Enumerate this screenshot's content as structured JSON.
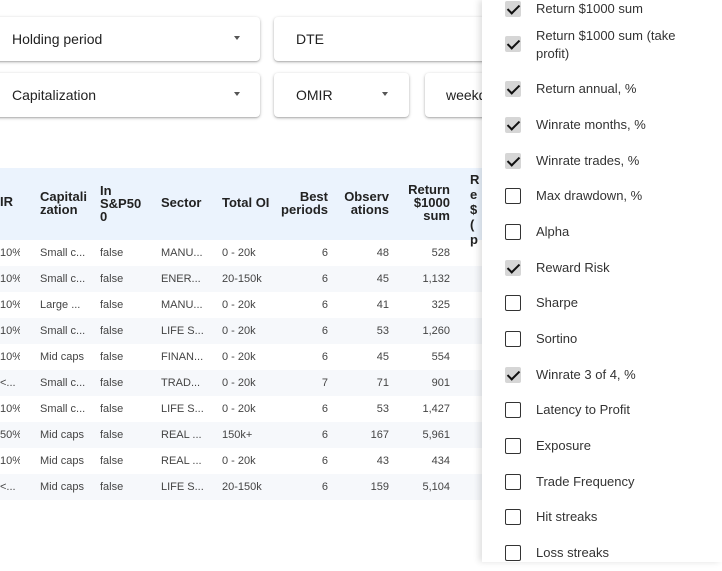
{
  "filters": {
    "holding_period": "Holding period",
    "dte": "DTE",
    "capitalization": "Capitalization",
    "omir": "OMIR",
    "weekday": "weekd"
  },
  "table": {
    "headers": [
      "IR",
      "Capitali zation",
      "In S&P50 0",
      "Sector",
      "Total OI",
      "Best periods",
      "Observ ations",
      "Return $1000 sum",
      "Re $ ( p"
    ],
    "rows": [
      [
        "10%",
        "Small c...",
        "false",
        "MANU...",
        "0 - 20k",
        "6",
        "48",
        "528"
      ],
      [
        "10%",
        "Small c...",
        "false",
        "ENER...",
        "20-150k",
        "6",
        "45",
        "1,132"
      ],
      [
        "10%",
        "Large ...",
        "false",
        "MANU...",
        "0 - 20k",
        "6",
        "41",
        "325"
      ],
      [
        "10%",
        "Small c...",
        "false",
        "LIFE S...",
        "0 - 20k",
        "6",
        "53",
        "1,260"
      ],
      [
        "10%",
        "Mid caps",
        "false",
        "FINAN...",
        "0 - 20k",
        "6",
        "45",
        "554"
      ],
      [
        "<...",
        "Small c...",
        "false",
        "TRAD...",
        "0 - 20k",
        "7",
        "71",
        "901"
      ],
      [
        "10%",
        "Small c...",
        "false",
        "LIFE S...",
        "0 - 20k",
        "6",
        "53",
        "1,427"
      ],
      [
        "50%",
        "Mid caps",
        "false",
        "REAL ...",
        "150k+",
        "6",
        "167",
        "5,961"
      ],
      [
        "10%",
        "Mid caps",
        "false",
        "REAL ...",
        "0 - 20k",
        "6",
        "43",
        "434"
      ],
      [
        "<...",
        "Mid caps",
        "false",
        "LIFE S...",
        "20-150k",
        "6",
        "159",
        "5,104"
      ]
    ]
  },
  "columns_panel": {
    "items": [
      {
        "label": "Return $1000 sum",
        "checked": true
      },
      {
        "label": "Return $1000 sum (take profit)",
        "checked": true
      },
      {
        "label": "Return annual, %",
        "checked": true
      },
      {
        "label": "Winrate months, %",
        "checked": true
      },
      {
        "label": "Winrate trades, %",
        "checked": true
      },
      {
        "label": "Max drawdown, %",
        "checked": false
      },
      {
        "label": "Alpha",
        "checked": false
      },
      {
        "label": "Reward Risk",
        "checked": true
      },
      {
        "label": "Sharpe",
        "checked": false
      },
      {
        "label": "Sortino",
        "checked": false
      },
      {
        "label": "Winrate 3 of 4, %",
        "checked": true
      },
      {
        "label": "Latency to Profit",
        "checked": false
      },
      {
        "label": "Exposure",
        "checked": false
      },
      {
        "label": "Trade Frequency",
        "checked": false
      },
      {
        "label": "Hit streaks",
        "checked": false
      },
      {
        "label": "Loss streaks",
        "checked": false
      }
    ]
  }
}
